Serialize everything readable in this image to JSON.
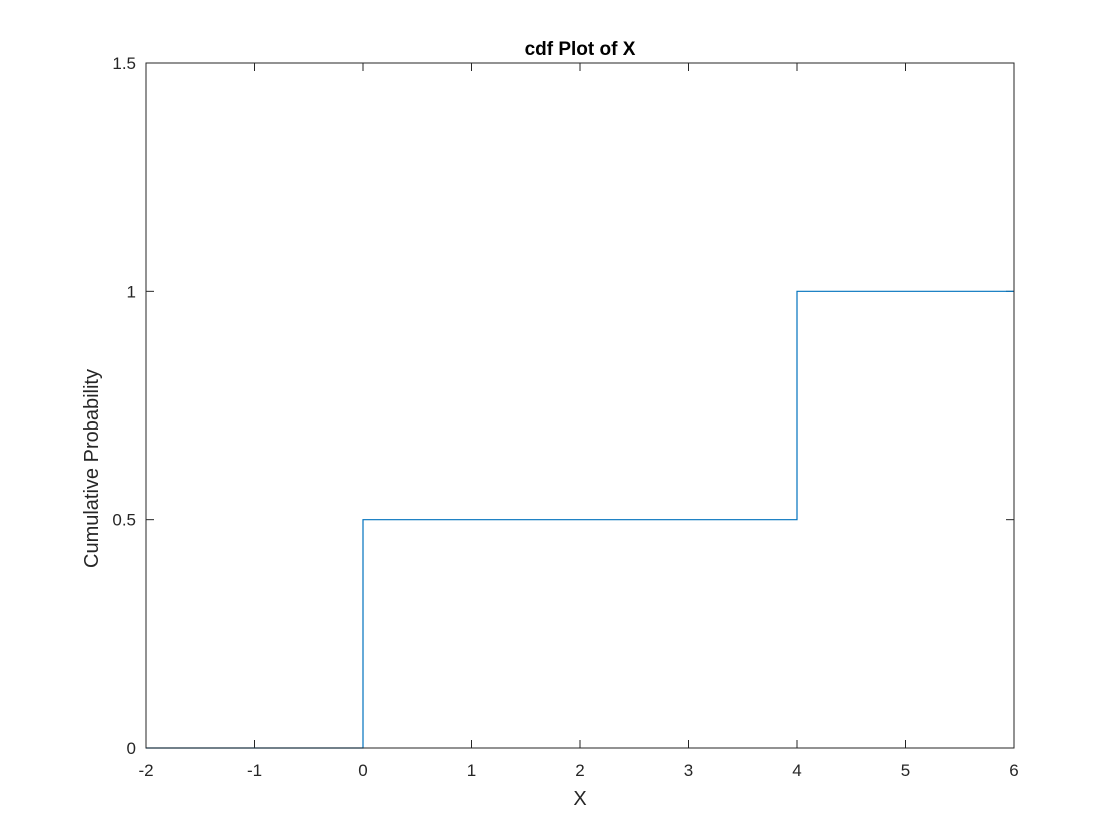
{
  "chart_data": {
    "type": "line",
    "title": "cdf Plot of X",
    "xlabel": "X",
    "ylabel": "Cumulative Probability",
    "xlim": [
      -2,
      6
    ],
    "ylim": [
      0,
      1.5
    ],
    "xticks": [
      -2,
      -1,
      0,
      1,
      2,
      3,
      4,
      5,
      6
    ],
    "yticks": [
      0,
      0.5,
      1,
      1.5
    ],
    "xtick_labels": [
      "-2",
      "-1",
      "0",
      "1",
      "2",
      "3",
      "4",
      "5",
      "6"
    ],
    "ytick_labels": [
      "0",
      "0.5",
      "1",
      "1.5"
    ],
    "grid": false,
    "series": [
      {
        "style": "stairs",
        "color": "#0072BD",
        "x": [
          -2,
          0,
          0,
          4,
          4,
          6
        ],
        "y": [
          0,
          0,
          0.5,
          0.5,
          1,
          1
        ]
      }
    ]
  }
}
